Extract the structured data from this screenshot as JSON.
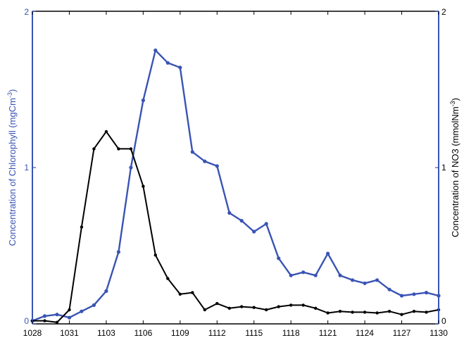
{
  "chart_data": {
    "type": "line",
    "x": [
      "1028",
      "1029",
      "1030",
      "1031",
      "1032",
      "1033",
      "1103",
      "1104",
      "1105",
      "1106",
      "1107",
      "1108",
      "1109",
      "1110",
      "1111",
      "1112",
      "1113",
      "1114",
      "1115",
      "1116",
      "1117",
      "1118",
      "1119",
      "1120",
      "1121",
      "1122",
      "1123",
      "1124",
      "1125",
      "1126",
      "1127",
      "1128",
      "1129",
      "1130"
    ],
    "xtick_labels": [
      "1028",
      "1031",
      "1103",
      "1106",
      "1109",
      "1112",
      "1115",
      "1118",
      "1121",
      "1124",
      "1127",
      "1130"
    ],
    "series": [
      {
        "axis": "left",
        "color": "#3a54b4",
        "values": [
          0.02,
          0.05,
          0.06,
          0.04,
          0.08,
          0.12,
          0.21,
          0.46,
          1.0,
          1.43,
          1.75,
          1.67,
          1.64,
          1.1,
          1.04,
          1.01,
          0.71,
          0.66,
          0.59,
          0.64,
          0.42,
          0.31,
          0.33,
          0.31,
          0.45,
          0.31,
          0.28,
          0.26,
          0.28,
          0.22,
          0.18,
          0.19,
          0.2,
          0.18
        ]
      },
      {
        "axis": "right",
        "color": "#000000",
        "values": [
          0.02,
          0.02,
          0.01,
          0.09,
          0.62,
          1.12,
          1.23,
          1.12,
          1.12,
          0.88,
          0.44,
          0.29,
          0.19,
          0.2,
          0.09,
          0.13,
          0.1,
          0.11,
          0.105,
          0.09,
          0.11,
          0.12,
          0.12,
          0.1,
          0.07,
          0.08,
          0.075,
          0.075,
          0.07,
          0.08,
          0.06,
          0.08,
          0.075,
          0.09
        ]
      }
    ],
    "ylabel": "Concentration of Chlorophyll (mgCm",
    "ylabel_sup": "-3",
    "ylabel_close": ")",
    "y2label": "Concentration of NO3 (mmolNm",
    "y2label_sup": "-3",
    "y2label_close": ")",
    "ylim": [
      0,
      2
    ],
    "y2lim": [
      0,
      2
    ],
    "yticks": [
      0,
      1,
      2
    ],
    "y2ticks": [
      0,
      1,
      2
    ],
    "left_axis_color": "#3a54b4",
    "right_axis_color": "#000000",
    "grid": false
  }
}
